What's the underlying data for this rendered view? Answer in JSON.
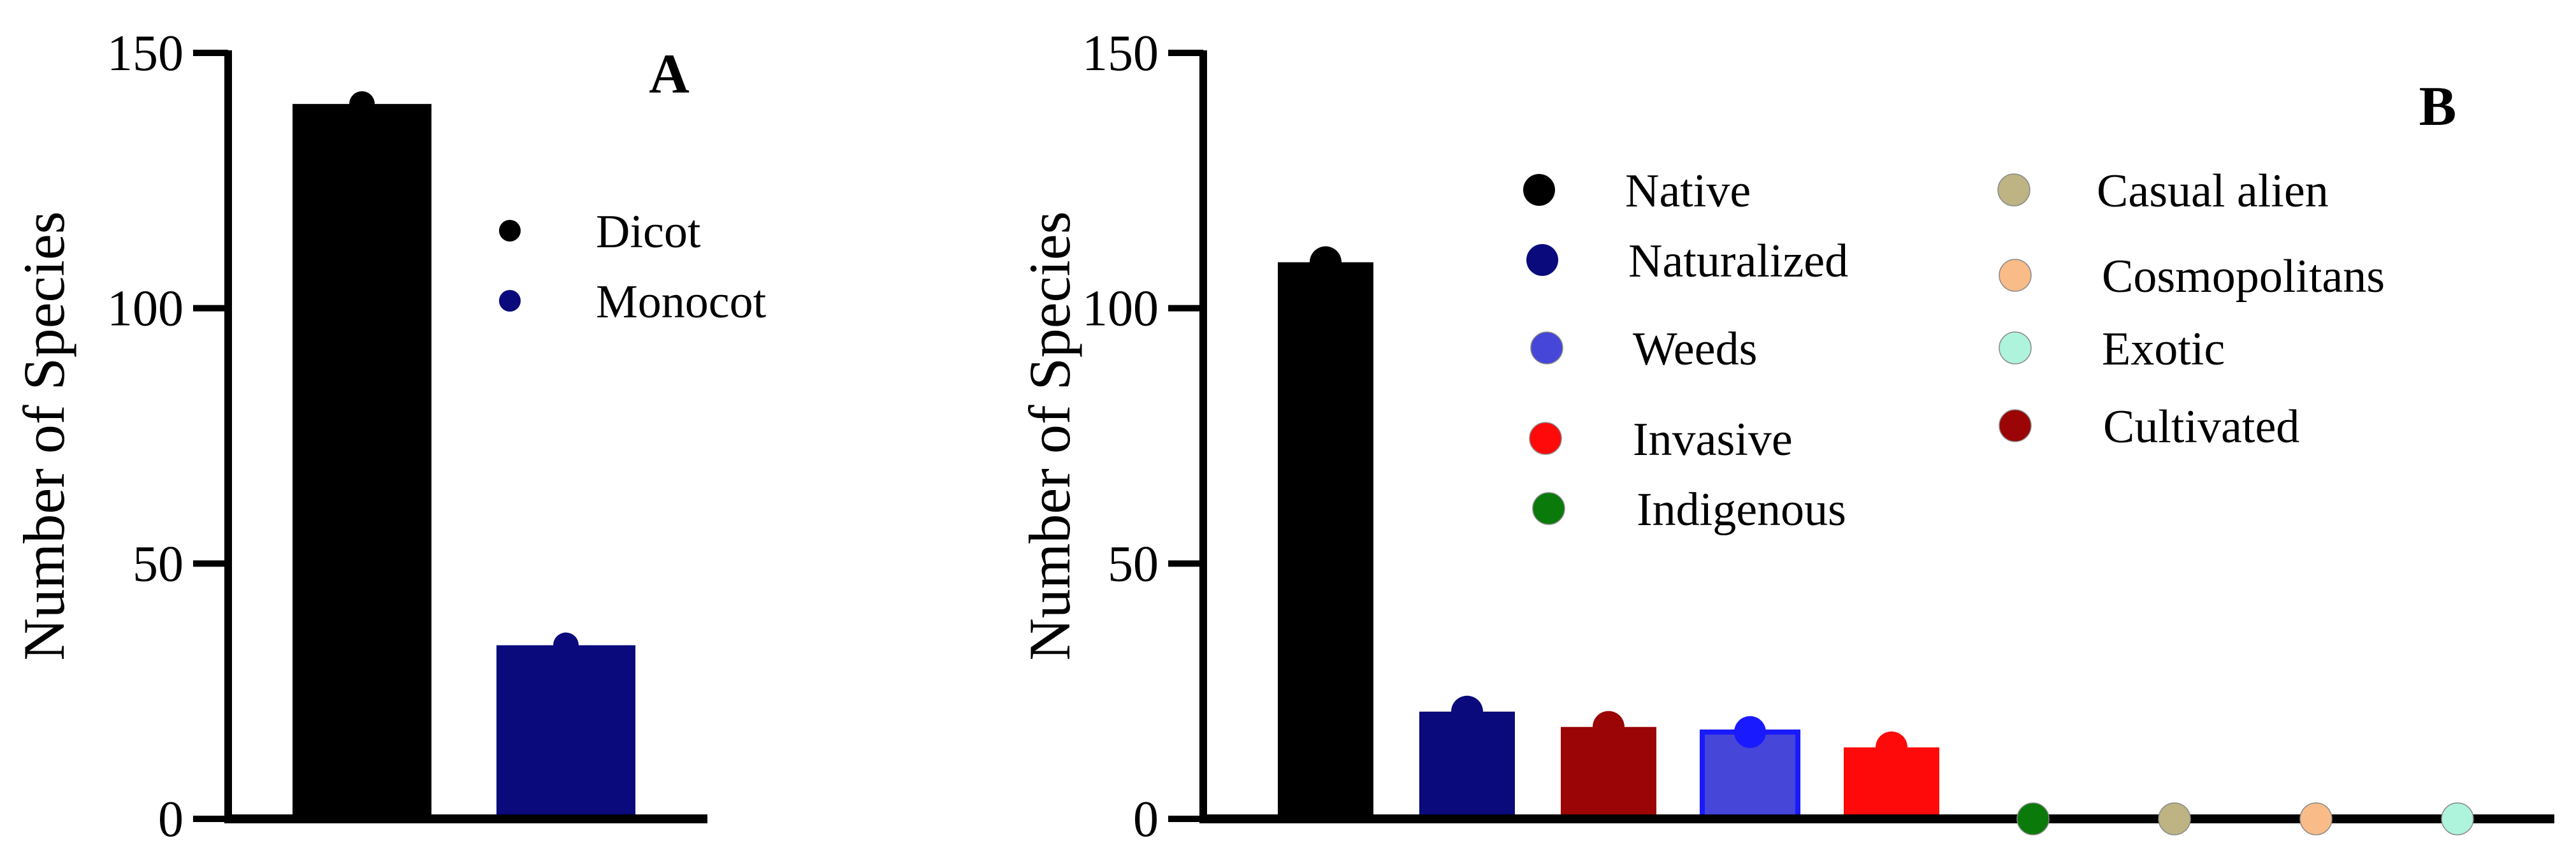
{
  "chart_data": [
    {
      "type": "bar",
      "panel": "A",
      "ylabel": "Number of Species",
      "xlabel": "",
      "ylim": [
        0,
        150
      ],
      "yticks": [
        0,
        50,
        100,
        150
      ],
      "categories": [
        "Dicot",
        "Monocot"
      ],
      "values": [
        140,
        34
      ],
      "colors": [
        "#000000",
        "#0a0a7c"
      ],
      "point_colors": [
        "#000000",
        "#0a0a7c"
      ],
      "legend": [
        {
          "label": "Dicot",
          "color": "#000000"
        },
        {
          "label": "Monocot",
          "color": "#0a0a7c"
        }
      ],
      "legend_position": "top-right"
    },
    {
      "type": "bar",
      "panel": "B",
      "ylabel": "Number of Species",
      "xlabel": "",
      "ylim": [
        0,
        150
      ],
      "yticks": [
        0,
        50,
        100,
        150
      ],
      "categories": [
        "Native",
        "Naturalized",
        "Cultivated",
        "Weeds",
        "Invasive",
        "Indigenous",
        "Casual alien",
        "Cosmopolitans",
        "Exotic"
      ],
      "values": [
        109,
        21,
        18,
        17,
        14,
        0,
        0,
        0,
        0
      ],
      "colors": [
        "#000000",
        "#0a0a7c",
        "#9b0505",
        "#4646d8",
        "#ff0a0a",
        "#0a7a0a",
        "#bdb383",
        "#f9bb87",
        "#aef3dc"
      ],
      "point_colors": [
        "#000000",
        "#0a0a7c",
        "#9b0505",
        "#1a1aff",
        "#ff0a0a",
        "#0a7a0a",
        "#bdb383",
        "#f9bb87",
        "#aef3dc"
      ],
      "legend": [
        {
          "label": "Native",
          "color": "#000000"
        },
        {
          "label": "Naturalized",
          "color": "#0a0a7c"
        },
        {
          "label": "Weeds",
          "color": "#4646d8"
        },
        {
          "label": "Invasive",
          "color": "#ff0a0a"
        },
        {
          "label": "Indigenous",
          "color": "#0a7a0a"
        },
        {
          "label": "Casual alien",
          "color": "#bdb383"
        },
        {
          "label": "Cosmopolitans",
          "color": "#f9bb87"
        },
        {
          "label": "Exotic",
          "color": "#aef3dc"
        },
        {
          "label": "Cultivated",
          "color": "#9b0505"
        }
      ],
      "legend_position": "top-right"
    }
  ]
}
